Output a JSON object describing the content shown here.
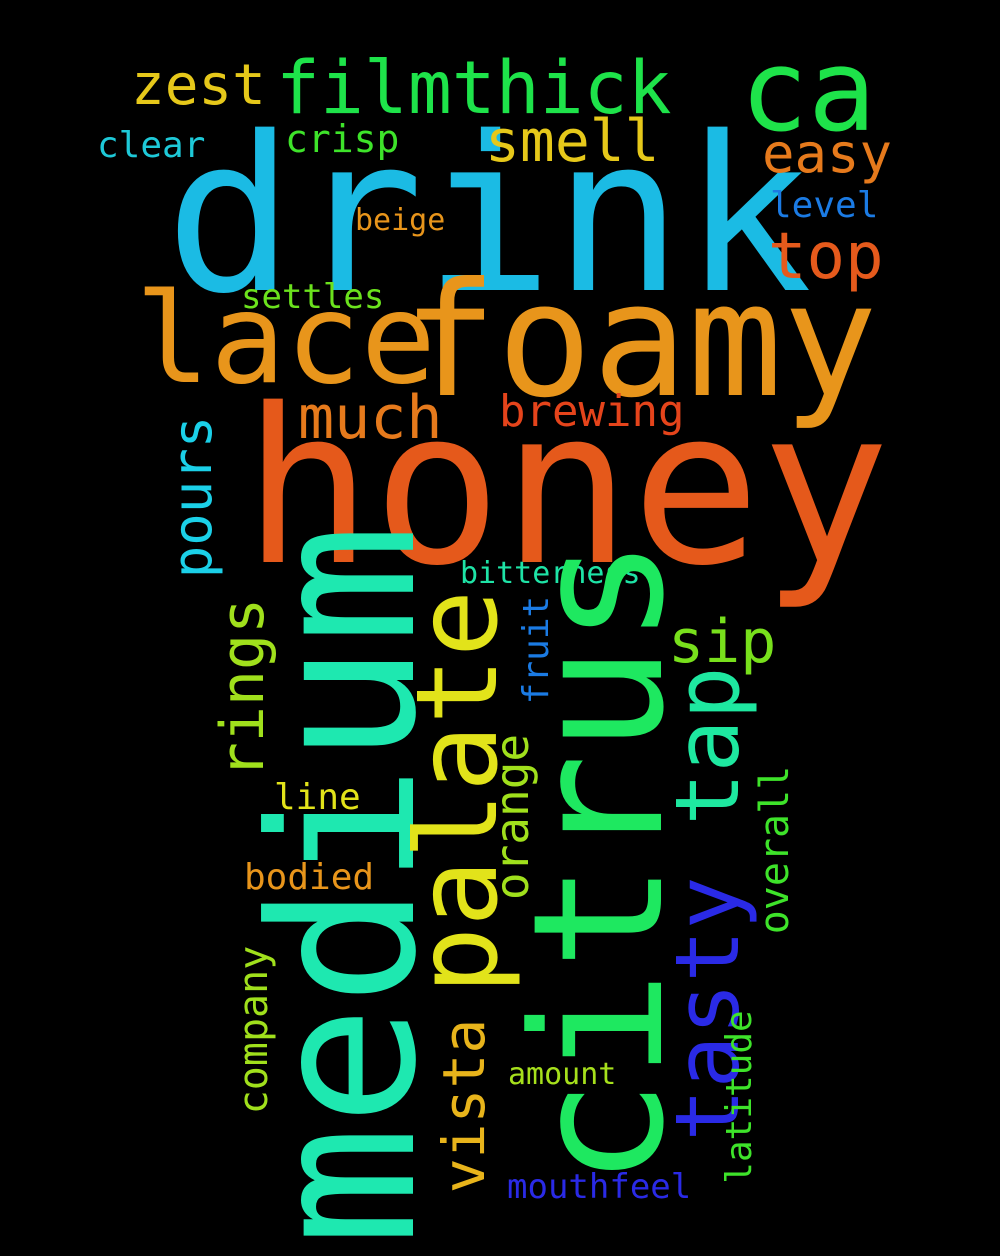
{
  "words": [
    {
      "text": "drink",
      "color": "#1bbbe4"
    },
    {
      "text": "honey",
      "color": "#e5591b"
    },
    {
      "text": "foamy",
      "color": "#e8951b"
    },
    {
      "text": "lace",
      "color": "#e8951b"
    },
    {
      "text": "filmthick",
      "color": "#1ee34a"
    },
    {
      "text": "ca",
      "color": "#1ee34a"
    },
    {
      "text": "zest",
      "color": "#e6c81a"
    },
    {
      "text": "smell",
      "color": "#e6c81a"
    },
    {
      "text": "easy",
      "color": "#e67a1c"
    },
    {
      "text": "clear",
      "color": "#1ec9d8"
    },
    {
      "text": "crisp",
      "color": "#3ee32a"
    },
    {
      "text": "level",
      "color": "#1b7be4"
    },
    {
      "text": "top",
      "color": "#e55a1c"
    },
    {
      "text": "beige",
      "color": "#e8951b"
    },
    {
      "text": "settles",
      "color": "#6be21d"
    },
    {
      "text": "much",
      "color": "#e67a1c"
    },
    {
      "text": "brewing",
      "color": "#e5441b"
    },
    {
      "text": "bitterness",
      "color": "#1ee3a6"
    },
    {
      "text": "sip",
      "color": "#78e01c"
    },
    {
      "text": "line",
      "color": "#e2e31a"
    },
    {
      "text": "bodied",
      "color": "#e8951b"
    },
    {
      "text": "amount",
      "color": "#a6e01c"
    },
    {
      "text": "mouthfeel",
      "color": "#2a2ae6"
    },
    {
      "text": "medium",
      "color": "#1ee8b0"
    },
    {
      "text": "citrus",
      "color": "#1ee860"
    },
    {
      "text": "palate",
      "color": "#e2e31a"
    },
    {
      "text": "tasty",
      "color": "#2a2ae6"
    },
    {
      "text": "tap",
      "color": "#1ee8a0"
    },
    {
      "text": "pours",
      "color": "#1bd0e8"
    },
    {
      "text": "rings",
      "color": "#a0e01c"
    },
    {
      "text": "vista",
      "color": "#e8b41b"
    },
    {
      "text": "orange",
      "color": "#a0e01c"
    },
    {
      "text": "fruit",
      "color": "#1b7be4"
    },
    {
      "text": "overall",
      "color": "#3ee32a"
    },
    {
      "text": "company",
      "color": "#a0e01c"
    },
    {
      "text": "latitude",
      "color": "#3ee32a"
    }
  ]
}
